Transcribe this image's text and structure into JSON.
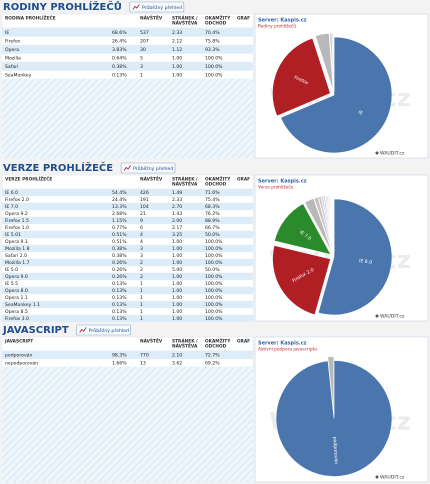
{
  "sections": [
    {
      "title": "RODINY PROHLÍŽEČŮ",
      "button": "Průběžný přehled",
      "columns": [
        [
          "RODINA PROHLÍŽEČE"
        ],
        [
          "NÁVŠTĚV"
        ],
        [
          "STRÁNEK /",
          "NÁVŠTĚVA"
        ],
        [
          "OKAMŽITÝ",
          "ODCHOD"
        ],
        [
          "GRAF"
        ]
      ],
      "visits": [
        537,
        207,
        30,
        5,
        3,
        1
      ],
      "pages": [
        "2.33",
        "2.12",
        "1.12",
        "1.00",
        "1.00",
        "1.00"
      ],
      "bounce": [
        "70.4%",
        "75.8%",
        "93.3%",
        "100.0%",
        "100.0%",
        "100.0%"
      ],
      "chart_data": {
        "type": "pie",
        "server": "Server: Kaspis.cz",
        "subtitle": "Rodiny prohlížečů",
        "categories": [
          "IE",
          "Firefox",
          "Opera",
          "Mozilla",
          "Safari",
          "SeaMonkey"
        ],
        "values": [
          68.6,
          26.4,
          3.83,
          0.64,
          0.38,
          0.13
        ],
        "value_labels": [
          "68.6%",
          "26.4%",
          "3.83%",
          "0.64%",
          "0.38%",
          "0.13%"
        ],
        "colors": [
          "#4a76ad",
          "#b01f24",
          "#b9b9b9",
          "#cfcfcf",
          "#dadada",
          "#e4e4e4"
        ],
        "watermark": "WAUDIT.cz",
        "footer": "WAUDIT.cz"
      }
    },
    {
      "title": "VERZE PROHLÍŽEČE",
      "button": "Průběžný přehled",
      "columns": [
        [
          "VERZE PROHLÍŽEČE"
        ],
        [
          "NÁVŠTĚV"
        ],
        [
          "STRÁNEK /",
          "NÁVŠTĚVA"
        ],
        [
          "OKAMŽITÝ",
          "ODCHOD"
        ],
        [
          "GRAF"
        ]
      ],
      "visits": [
        426,
        191,
        104,
        21,
        9,
        6,
        4,
        4,
        3,
        3,
        2,
        2,
        2,
        1,
        1,
        1,
        1,
        1,
        1
      ],
      "pages": [
        "1.49",
        "2.33",
        "2.70",
        "1.43",
        "2.00",
        "2.17",
        "3.25",
        "1.00",
        "1.00",
        "1.00",
        "1.00",
        "5.00",
        "1.00",
        "1.00",
        "1.00",
        "1.00",
        "1.00",
        "1.00",
        "1.00"
      ],
      "bounce": [
        "71.6%",
        "75.4%",
        "68.3%",
        "76.2%",
        "88.9%",
        "66.7%",
        "50.0%",
        "100.0%",
        "100.0%",
        "100.0%",
        "100.0%",
        "50.0%",
        "100.0%",
        "100.0%",
        "100.0%",
        "100.0%",
        "100.0%",
        "100.0%",
        "100.0%"
      ],
      "chart_data": {
        "type": "pie",
        "server": "Server: Kaspis.cz",
        "subtitle": "Verze prohlížeče",
        "categories": [
          "IE 6.0",
          "Firefox 2.0",
          "IE 7.0",
          "Opera 9.2",
          "Firefox 1.5",
          "Firefox 1.0",
          "IE 5.01",
          "Opera 9.1",
          "Mozilla 1.8",
          "Safari 2.0",
          "Mozilla 1.7",
          "IE 5.0",
          "Opera 9.0",
          "IE 5.5",
          "Opera 8.0",
          "Opera 1.1",
          "SeaMonkey 1.1",
          "Opera 8.5",
          "Firefox 3.0"
        ],
        "values": [
          54.4,
          24.4,
          13.3,
          2.68,
          1.15,
          0.77,
          0.51,
          0.51,
          0.38,
          0.38,
          0.26,
          0.26,
          0.26,
          0.13,
          0.13,
          0.13,
          0.13,
          0.13,
          0.13
        ],
        "value_labels": [
          "54.4%",
          "24.4%",
          "13.3%",
          "2.68%",
          "1.15%",
          "0.77%",
          "0.51%",
          "0.51%",
          "0.38%",
          "0.38%",
          "0.26%",
          "0.26%",
          "0.26%",
          "0.13%",
          "0.13%",
          "0.13%",
          "0.13%",
          "0.13%",
          "0.13%"
        ],
        "colors": [
          "#4a76ad",
          "#b01f24",
          "#2b8a2b",
          "#b9b9b9",
          "#c4c4c4",
          "#cccccc",
          "#d2d2d2",
          "#d6d6d6",
          "#dadada",
          "#dddddd",
          "#e0e0e0",
          "#e2e2e2",
          "#e4e4e4",
          "#e6e6e6",
          "#e8e8e8",
          "#eaeaea",
          "#ececec",
          "#eeeeee",
          "#f0f0f0"
        ],
        "watermark": "WAUDIT.cz",
        "footer": "WAUDIT.cz"
      }
    },
    {
      "title": "JAVASCRIPT",
      "button": "Průběžný přehled",
      "columns": [
        [
          "JAVASCRIPT"
        ],
        [
          "NÁVŠTĚV"
        ],
        [
          "STRÁNEK /",
          "NÁVŠTĚVA"
        ],
        [
          "OKAMŽITÝ",
          "ODCHOD"
        ],
        [
          "GRAF"
        ]
      ],
      "visits": [
        770,
        13
      ],
      "pages": [
        "2.10",
        "3.62"
      ],
      "bounce": [
        "72.7%",
        "69.2%"
      ],
      "chart_data": {
        "type": "pie",
        "server": "Server: Kaspis.cz",
        "subtitle": "Aktivní podpora javascriptu",
        "categories": [
          "podporován",
          "nepodporován"
        ],
        "values": [
          98.3,
          1.66
        ],
        "value_labels": [
          "98.3%",
          "1.66%"
        ],
        "colors": [
          "#4a76ad",
          "#b9b9b9"
        ],
        "watermark": "WAUDIT.cz",
        "footer": "WAUDIT.cz"
      }
    }
  ]
}
